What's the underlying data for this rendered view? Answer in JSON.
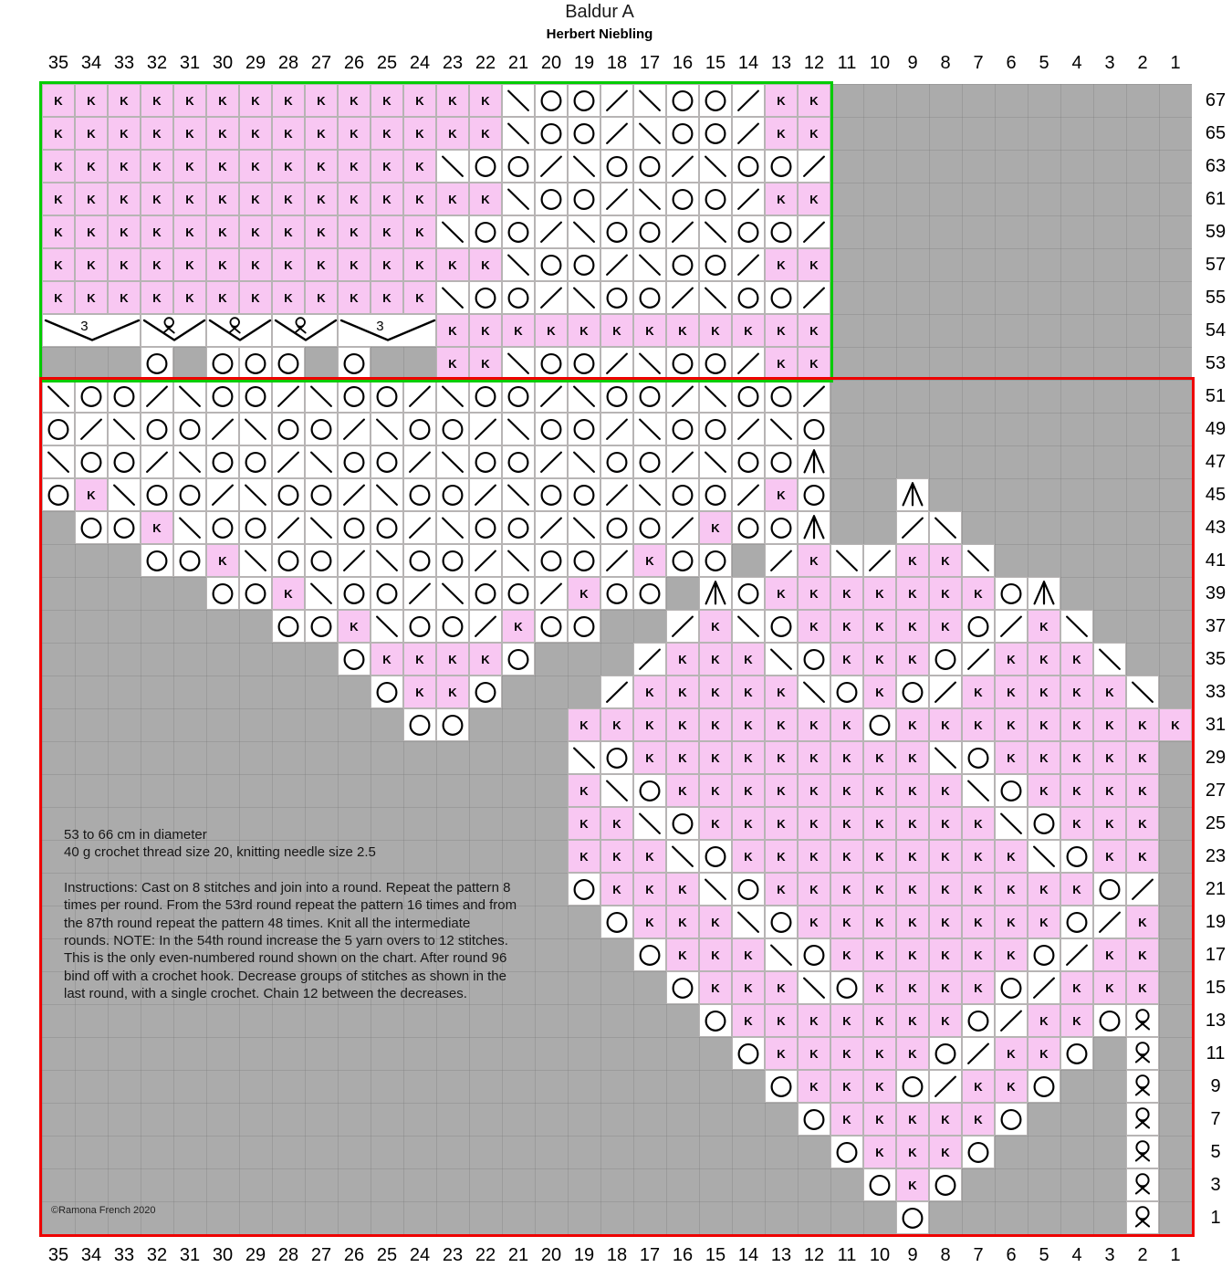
{
  "title": "Baldur A",
  "subtitle": "Herbert Niebling",
  "copyright": "©Ramona French 2020",
  "notes": {
    "size_line": "53 to 66 cm in diameter",
    "materials_line": "40 g crochet thread size 20, knitting needle size 2.5",
    "instructions_lines": [
      "Instructions: Cast on 8 stitches and join into a round. Repeat the pattern 8",
      "times per round. From the 53rd round repeat the pattern 16 times and from",
      "the 87th round repeat the pattern 48 times. Knit all the intermediate",
      "rounds. NOTE: In the 54th round increase the 5 yarn overs to 12 stitches.",
      "This is the only even-numbered round shown on the chart. After round 96",
      "bind off with a crochet hook. Decrease groups of stitches as shown in the",
      "last round, with a single crochet. Chain 12 between the decreases."
    ]
  },
  "colors": {
    "cell_pink": "#f8c7f2",
    "background_gray": "#ababab",
    "border_green": "#00cc00",
    "border_red": "#ee0000",
    "cell_border": "#b7b4b4",
    "symbol_black": "#000000"
  },
  "symbols": {
    "K": "knit stitch",
    "O": "yarn over",
    "\\": "left-leaning decrease",
    "/": "right-leaning decrease",
    "A": "centered double decrease",
    "Q": "twisted loop stitch",
    "3": "gather 3 stitches",
    ".": "no stitch"
  },
  "grid": {
    "column_labels": [
      35,
      34,
      33,
      32,
      31,
      30,
      29,
      28,
      27,
      26,
      25,
      24,
      23,
      22,
      21,
      20,
      19,
      18,
      17,
      16,
      15,
      14,
      13,
      12,
      11,
      10,
      9,
      8,
      7,
      6,
      5,
      4,
      3,
      2,
      1
    ],
    "row_labels": [
      67,
      65,
      63,
      61,
      59,
      57,
      55,
      54,
      53,
      51,
      49,
      47,
      45,
      43,
      41,
      39,
      37,
      35,
      33,
      31,
      29,
      27,
      25,
      23,
      21,
      19,
      17,
      15,
      13,
      11,
      9,
      7,
      5,
      3,
      1
    ],
    "rows": [
      {
        "label": "67",
        "cells": "KKKKKKKKKKKKKK\\OO/\\OO/KK..........."
      },
      {
        "label": "65",
        "cells": "KKKKKKKKKKKKKK\\OO/\\OO/KK..........."
      },
      {
        "label": "63",
        "cells": "KKKKKKKKKKKK\\OO/\\OO/\\OO/..........."
      },
      {
        "label": "61",
        "cells": "KKKKKKKKKKKKKK\\OO/\\OO/KK..........."
      },
      {
        "label": "59",
        "cells": "KKKKKKKKKKKK\\OO/\\OO/\\OO/..........."
      },
      {
        "label": "57",
        "cells": "KKKKKKKKKKKKKK\\OO/\\OO/KK..........."
      },
      {
        "label": "55",
        "cells": "KKKKKKKKKKKK\\OO/\\OO/\\OO/..........."
      },
      {
        "label": "54",
        "spans": [
          {
            "cols": 3,
            "glyph": "3"
          },
          {
            "cols": 2,
            "glyph": "Q"
          },
          {
            "cols": 2,
            "glyph": "Q"
          },
          {
            "cols": 2,
            "glyph": "Q"
          },
          {
            "cols": 3,
            "glyph": "3"
          }
        ],
        "right_cells": "KKKKKKKKKKKK",
        "trailing": "..........."
      },
      {
        "label": "53",
        "cells": "...O.OOO.O..KK\\OO/\\OO/KK..........."
      },
      {
        "label": "51",
        "cells": "\\OO/\\OO/\\OO/\\OO/\\OO/\\OO/..........."
      },
      {
        "label": "49",
        "cells": "O/\\OO/\\OO/\\OO/\\OO/\\OO/\\O..........."
      },
      {
        "label": "47",
        "cells": "\\OO/\\OO/\\OO/\\OO/\\OO/\\OOA..........."
      },
      {
        "label": "45",
        "cells": "OK\\OO/\\OO/\\OO/\\OO/\\OO/KO..A........"
      },
      {
        "label": "43",
        "cells": ".OOK\\OO/\\OO/\\OO/\\OO/KOOA../\\......."
      },
      {
        "label": "41",
        "cells": "...OOK\\OO/\\OO/\\OO/KOO./K\\/KK\\......"
      },
      {
        "label": "39",
        "cells": ".....OOK\\OO/\\OO/KOO.AOKKKKKKKOA...."
      },
      {
        "label": "37",
        "cells": ".......OOK\\OO/KOO../K\\OKKKKKO/K\\..."
      },
      {
        "label": "35",
        "cells": ".........OKKKKO.../KKK\\OKKKO/KKK\\.."
      },
      {
        "label": "33",
        "cells": "..........OKKO.../KKKKK\\OKO/KKKKK\\."
      },
      {
        "label": "31",
        "cells": "...........OO...KKKKKKKKKOKKKKKKKKK"
      },
      {
        "label": "29",
        "cells": "................\\OKKKKKKKKK\\OKKKKK."
      },
      {
        "label": "27",
        "cells": "................K\\OKKKKKKKKK\\OKKKK."
      },
      {
        "label": "25",
        "cells": "................KK\\OKKKKKKKKK\\OKKK."
      },
      {
        "label": "23",
        "cells": "................KKK\\OKKKKKKKKK\\OKK."
      },
      {
        "label": "21",
        "cells": "................OKKK\\OKKKKKKKKKKO/."
      },
      {
        "label": "19",
        "cells": ".................OKKK\\OKKKKKKKKO/K."
      },
      {
        "label": "17",
        "cells": "..................OKKK\\OKKKKKKO/KK."
      },
      {
        "label": "15",
        "cells": "...................OKKK\\OKKKKO/KKK."
      },
      {
        "label": "13",
        "cells": "....................OKKKKKKKO/KKOQ."
      },
      {
        "label": "11",
        "cells": ".....................OKKKKKO/KKO.Q."
      },
      {
        "label": "9",
        "cells": "......................OKKKO/KKO..Q."
      },
      {
        "label": "7",
        "cells": ".......................OKKKKKO...Q."
      },
      {
        "label": "5",
        "cells": "........................OKKKO....Q."
      },
      {
        "label": "3",
        "cells": ".........................OKO.....Q."
      },
      {
        "label": "1",
        "cells": "..........................O......Q."
      }
    ]
  }
}
